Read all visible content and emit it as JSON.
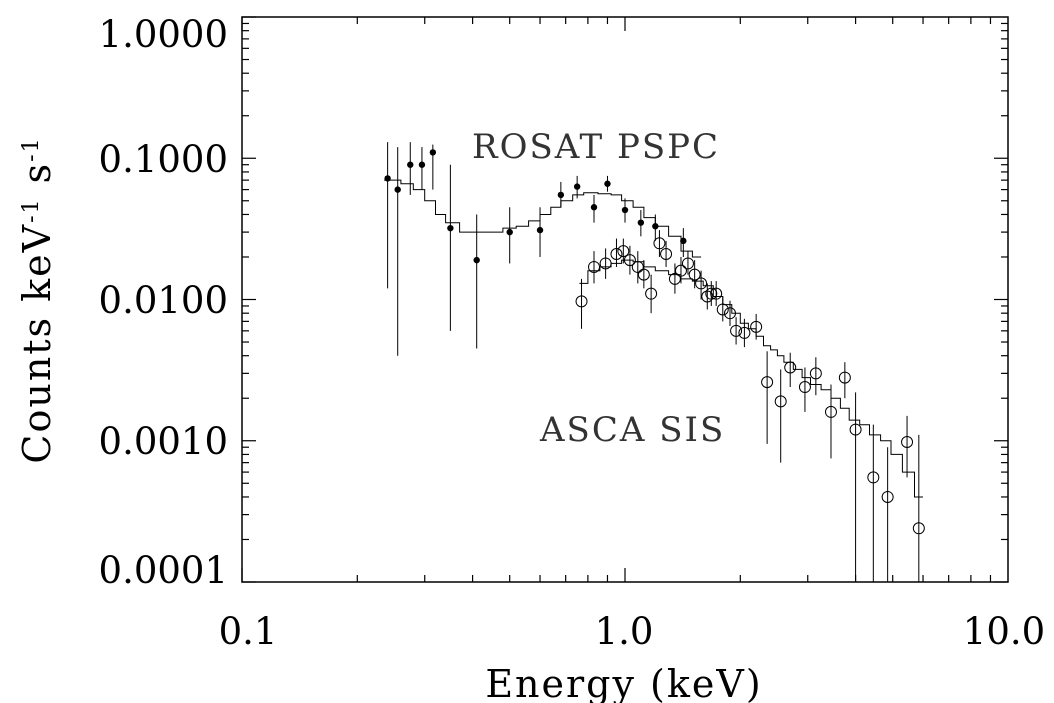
{
  "chart_data": {
    "type": "scatter",
    "xlabel": "Energy (keV)",
    "ylabel_main": "Counts keV",
    "ylabel_sup1": "-1",
    "ylabel_s": " s",
    "ylabel_sup2": "-1",
    "xscale": "log",
    "yscale": "log",
    "xlim": [
      0.1,
      10.0
    ],
    "ylim": [
      0.0001,
      1.0
    ],
    "x_ticks": [
      {
        "value": 0.1,
        "label": "0.1"
      },
      {
        "value": 1.0,
        "label": "1.0"
      },
      {
        "value": 10.0,
        "label": "10.0"
      }
    ],
    "y_ticks": [
      {
        "value": 1.0,
        "label": "1.0000"
      },
      {
        "value": 0.1,
        "label": "0.1000"
      },
      {
        "value": 0.01,
        "label": "0.0100"
      },
      {
        "value": 0.001,
        "label": "0.0010"
      },
      {
        "value": 0.0001,
        "label": "0.0001"
      }
    ],
    "annotations": [
      {
        "text": "ROSAT PSPC",
        "x": 0.4,
        "y": 0.095
      },
      {
        "text": "ASCA SIS",
        "x": 0.4,
        "y": 0.00089
      }
    ],
    "series": [
      {
        "marker": "filled-circle",
        "points": [
          {
            "x": 0.24,
            "y": 0.072,
            "ylo": 0.012,
            "yhi": 0.13
          },
          {
            "x": 0.255,
            "y": 0.06,
            "ylo": 0.004,
            "yhi": 0.12
          },
          {
            "x": 0.275,
            "y": 0.09,
            "ylo": 0.055,
            "yhi": 0.13
          },
          {
            "x": 0.295,
            "y": 0.09,
            "ylo": 0.06,
            "yhi": 0.12
          },
          {
            "x": 0.315,
            "y": 0.11,
            "ylo": 0.06,
            "yhi": 0.125
          },
          {
            "x": 0.35,
            "y": 0.032,
            "ylo": 0.006,
            "yhi": 0.09
          },
          {
            "x": 0.41,
            "y": 0.019,
            "ylo": 0.0045,
            "yhi": 0.04
          },
          {
            "x": 0.5,
            "y": 0.03,
            "ylo": 0.018,
            "yhi": 0.045
          },
          {
            "x": 0.6,
            "y": 0.031,
            "ylo": 0.02,
            "yhi": 0.045
          },
          {
            "x": 0.68,
            "y": 0.055,
            "ylo": 0.045,
            "yhi": 0.068
          },
          {
            "x": 0.75,
            "y": 0.063,
            "ylo": 0.052,
            "yhi": 0.075
          },
          {
            "x": 0.83,
            "y": 0.045,
            "ylo": 0.035,
            "yhi": 0.055
          },
          {
            "x": 0.9,
            "y": 0.066,
            "ylo": 0.058,
            "yhi": 0.075
          },
          {
            "x": 1.0,
            "y": 0.043,
            "ylo": 0.035,
            "yhi": 0.052
          },
          {
            "x": 1.1,
            "y": 0.035,
            "ylo": 0.028,
            "yhi": 0.043
          },
          {
            "x": 1.2,
            "y": 0.033,
            "ylo": 0.026,
            "yhi": 0.04
          },
          {
            "x": 1.42,
            "y": 0.026,
            "ylo": 0.02,
            "yhi": 0.032
          }
        ],
        "model_step": [
          [
            0.235,
            0.07
          ],
          [
            0.26,
            0.066
          ],
          [
            0.28,
            0.06
          ],
          [
            0.3,
            0.05
          ],
          [
            0.32,
            0.04
          ],
          [
            0.34,
            0.035
          ],
          [
            0.37,
            0.03
          ],
          [
            0.42,
            0.03
          ],
          [
            0.48,
            0.032
          ],
          [
            0.52,
            0.033
          ],
          [
            0.56,
            0.036
          ],
          [
            0.6,
            0.04
          ],
          [
            0.64,
            0.045
          ],
          [
            0.68,
            0.05
          ],
          [
            0.73,
            0.055
          ],
          [
            0.78,
            0.057
          ],
          [
            0.85,
            0.056
          ],
          [
            0.92,
            0.055
          ],
          [
            0.98,
            0.05
          ],
          [
            1.05,
            0.045
          ],
          [
            1.12,
            0.038
          ],
          [
            1.2,
            0.033
          ],
          [
            1.3,
            0.028
          ],
          [
            1.4,
            0.022
          ],
          [
            1.5,
            0.02
          ],
          [
            1.58,
            0.02
          ]
        ]
      },
      {
        "marker": "open-circle",
        "points": [
          {
            "x": 0.77,
            "y": 0.0097,
            "ylo": 0.0062,
            "yhi": 0.014
          },
          {
            "x": 0.83,
            "y": 0.017,
            "ylo": 0.013,
            "yhi": 0.022
          },
          {
            "x": 0.89,
            "y": 0.018,
            "ylo": 0.014,
            "yhi": 0.023
          },
          {
            "x": 0.95,
            "y": 0.021,
            "ylo": 0.017,
            "yhi": 0.027
          },
          {
            "x": 0.99,
            "y": 0.022,
            "ylo": 0.018,
            "yhi": 0.027
          },
          {
            "x": 1.03,
            "y": 0.019,
            "ylo": 0.015,
            "yhi": 0.024
          },
          {
            "x": 1.08,
            "y": 0.017,
            "ylo": 0.013,
            "yhi": 0.022
          },
          {
            "x": 1.12,
            "y": 0.015,
            "ylo": 0.012,
            "yhi": 0.019
          },
          {
            "x": 1.17,
            "y": 0.011,
            "ylo": 0.008,
            "yhi": 0.015
          },
          {
            "x": 1.23,
            "y": 0.025,
            "ylo": 0.02,
            "yhi": 0.031
          },
          {
            "x": 1.28,
            "y": 0.021,
            "ylo": 0.017,
            "yhi": 0.026
          },
          {
            "x": 1.35,
            "y": 0.014,
            "ylo": 0.011,
            "yhi": 0.018
          },
          {
            "x": 1.4,
            "y": 0.016,
            "ylo": 0.013,
            "yhi": 0.02
          },
          {
            "x": 1.46,
            "y": 0.018,
            "ylo": 0.015,
            "yhi": 0.022
          },
          {
            "x": 1.52,
            "y": 0.015,
            "ylo": 0.012,
            "yhi": 0.019
          },
          {
            "x": 1.58,
            "y": 0.013,
            "ylo": 0.01,
            "yhi": 0.016
          },
          {
            "x": 1.64,
            "y": 0.0105,
            "ylo": 0.0085,
            "yhi": 0.013
          },
          {
            "x": 1.68,
            "y": 0.011,
            "ylo": 0.009,
            "yhi": 0.0135
          },
          {
            "x": 1.73,
            "y": 0.011,
            "ylo": 0.009,
            "yhi": 0.0135
          },
          {
            "x": 1.8,
            "y": 0.0085,
            "ylo": 0.007,
            "yhi": 0.0105
          },
          {
            "x": 1.88,
            "y": 0.008,
            "ylo": 0.0065,
            "yhi": 0.0098
          },
          {
            "x": 1.95,
            "y": 0.006,
            "ylo": 0.0048,
            "yhi": 0.0075
          },
          {
            "x": 2.05,
            "y": 0.0058,
            "ylo": 0.0046,
            "yhi": 0.0073
          },
          {
            "x": 2.2,
            "y": 0.0064,
            "ylo": 0.0052,
            "yhi": 0.0079
          },
          {
            "x": 2.35,
            "y": 0.0026,
            "ylo": 0.00095,
            "yhi": 0.0043
          },
          {
            "x": 2.55,
            "y": 0.0019,
            "ylo": 0.0007,
            "yhi": 0.0032
          },
          {
            "x": 2.7,
            "y": 0.0033,
            "ylo": 0.0024,
            "yhi": 0.0042
          },
          {
            "x": 2.95,
            "y": 0.0024,
            "ylo": 0.0016,
            "yhi": 0.0033
          },
          {
            "x": 3.15,
            "y": 0.003,
            "ylo": 0.0021,
            "yhi": 0.0039
          },
          {
            "x": 3.45,
            "y": 0.0016,
            "ylo": 0.00075,
            "yhi": 0.0025
          },
          {
            "x": 3.75,
            "y": 0.0028,
            "ylo": 0.002,
            "yhi": 0.0036
          },
          {
            "x": 4.0,
            "y": 0.0012,
            "ylo": 0.0001,
            "yhi": 0.0022
          },
          {
            "x": 4.45,
            "y": 0.00055,
            "ylo": 0.0001,
            "yhi": 0.0013
          },
          {
            "x": 4.85,
            "y": 0.0004,
            "ylo": 0.0001,
            "yhi": 0.0009
          },
          {
            "x": 5.45,
            "y": 0.00098,
            "ylo": 0.00055,
            "yhi": 0.0015
          },
          {
            "x": 5.85,
            "y": 0.00024,
            "ylo": 0.0001,
            "yhi": 0.0011
          }
        ],
        "model_step": [
          [
            0.76,
            0.013
          ],
          [
            0.8,
            0.016
          ],
          [
            0.86,
            0.017
          ],
          [
            0.92,
            0.018
          ],
          [
            0.98,
            0.019
          ],
          [
            1.05,
            0.0185
          ],
          [
            1.12,
            0.017
          ],
          [
            1.2,
            0.016
          ],
          [
            1.3,
            0.015
          ],
          [
            1.4,
            0.014
          ],
          [
            1.5,
            0.0135
          ],
          [
            1.6,
            0.0125
          ],
          [
            1.7,
            0.0105
          ],
          [
            1.8,
            0.0092
          ],
          [
            1.9,
            0.008
          ],
          [
            2.0,
            0.0068
          ],
          [
            2.1,
            0.0062
          ],
          [
            2.2,
            0.0055
          ],
          [
            2.3,
            0.0047
          ],
          [
            2.4,
            0.0044
          ],
          [
            2.5,
            0.004
          ],
          [
            2.6,
            0.0036
          ],
          [
            2.75,
            0.0032
          ],
          [
            2.9,
            0.0028
          ],
          [
            3.05,
            0.0025
          ],
          [
            3.25,
            0.0023
          ],
          [
            3.45,
            0.002
          ],
          [
            3.65,
            0.0017
          ],
          [
            3.85,
            0.0014
          ],
          [
            4.1,
            0.0013
          ],
          [
            4.35,
            0.0011
          ],
          [
            4.65,
            0.001
          ],
          [
            4.95,
            0.0008
          ],
          [
            5.3,
            0.0006
          ],
          [
            5.7,
            0.0004
          ],
          [
            6.0,
            0.0004
          ]
        ]
      }
    ]
  }
}
